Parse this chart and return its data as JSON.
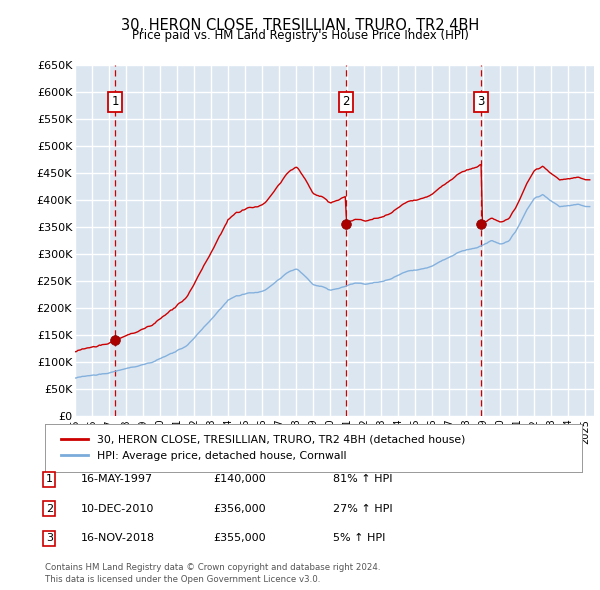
{
  "title": "30, HERON CLOSE, TRESILLIAN, TRURO, TR2 4BH",
  "subtitle": "Price paid vs. HM Land Registry's House Price Index (HPI)",
  "ylim": [
    0,
    650000
  ],
  "yticks": [
    0,
    50000,
    100000,
    150000,
    200000,
    250000,
    300000,
    350000,
    400000,
    450000,
    500000,
    550000,
    600000,
    650000
  ],
  "xlim_start": 1995.0,
  "xlim_end": 2025.5,
  "plot_bg_color": "#dce6f1",
  "grid_color": "#ffffff",
  "sale_color": "#cc0000",
  "hpi_color": "#7aabdb",
  "sales": [
    {
      "date_val": 1997.37,
      "price": 140000,
      "label": "1",
      "date_str": "16-MAY-1997",
      "pct": "81%"
    },
    {
      "date_val": 2010.94,
      "price": 356000,
      "label": "2",
      "date_str": "10-DEC-2010",
      "pct": "27%"
    },
    {
      "date_val": 2018.87,
      "price": 355000,
      "label": "3",
      "date_str": "16-NOV-2018",
      "pct": "5%"
    }
  ],
  "legend_label_house": "30, HERON CLOSE, TRESILLIAN, TRURO, TR2 4BH (detached house)",
  "legend_label_hpi": "HPI: Average price, detached house, Cornwall",
  "footer1": "Contains HM Land Registry data © Crown copyright and database right 2024.",
  "footer2": "This data is licensed under the Open Government Licence v3.0.",
  "hpi_anchors_years": [
    1995.0,
    1995.5,
    1996.0,
    1996.5,
    1997.0,
    1997.5,
    1998.0,
    1998.5,
    1999.0,
    1999.5,
    2000.0,
    2000.5,
    2001.0,
    2001.5,
    2002.0,
    2002.5,
    2003.0,
    2003.5,
    2004.0,
    2004.5,
    2005.0,
    2005.5,
    2006.0,
    2006.5,
    2007.0,
    2007.5,
    2008.0,
    2008.5,
    2009.0,
    2009.5,
    2010.0,
    2010.5,
    2011.0,
    2011.5,
    2012.0,
    2012.5,
    2013.0,
    2013.5,
    2014.0,
    2014.5,
    2015.0,
    2015.5,
    2016.0,
    2016.5,
    2017.0,
    2017.5,
    2018.0,
    2018.5,
    2019.0,
    2019.5,
    2020.0,
    2020.5,
    2021.0,
    2021.5,
    2022.0,
    2022.5,
    2023.0,
    2023.5,
    2024.0,
    2024.5,
    2025.0
  ],
  "hpi_anchors_vals": [
    70000,
    72000,
    75000,
    77000,
    80000,
    84000,
    88000,
    90000,
    93000,
    97000,
    103000,
    110000,
    118000,
    126000,
    140000,
    158000,
    175000,
    193000,
    210000,
    218000,
    222000,
    225000,
    230000,
    238000,
    248000,
    262000,
    268000,
    255000,
    238000,
    235000,
    228000,
    232000,
    238000,
    242000,
    240000,
    242000,
    245000,
    250000,
    258000,
    265000,
    268000,
    272000,
    278000,
    285000,
    292000,
    300000,
    305000,
    308000,
    315000,
    325000,
    318000,
    322000,
    345000,
    375000,
    400000,
    408000,
    395000,
    385000,
    388000,
    390000,
    385000
  ]
}
